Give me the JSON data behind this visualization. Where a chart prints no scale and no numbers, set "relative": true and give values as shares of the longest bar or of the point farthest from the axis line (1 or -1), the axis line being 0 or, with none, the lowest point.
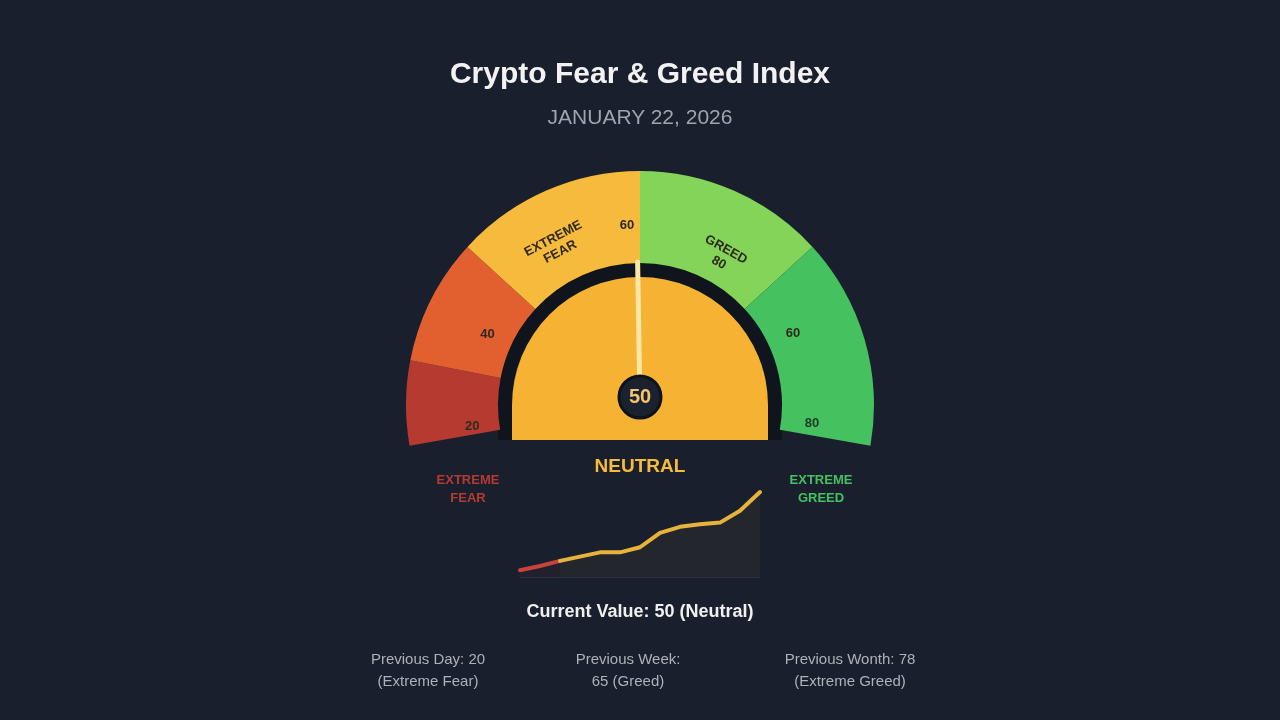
{
  "chart_data": [
    {
      "type": "donut",
      "title": "Crypto Fear & Greed Index",
      "subtitle": "JANUARY 22, 2026",
      "categories": [
        "20",
        "40",
        "EXTREME FEAR",
        "GREED 80",
        "60"
      ],
      "values": [
        10.5,
        15.75,
        23.75,
        23.75,
        26.25
      ],
      "colors": [
        "#b63a30",
        "#e2602f",
        "#f6bb3c",
        "#84d45a",
        "#45c160"
      ],
      "needle": "EXTREME FEAR",
      "annotations": [
        "60",
        "80",
        "EXTREME FEAR",
        "NEUTRAL",
        "EXTREME GREED",
        "50"
      ]
    },
    {
      "type": "area",
      "relative": true,
      "categories": [
        null,
        null,
        null,
        null,
        null,
        null,
        null,
        null,
        null,
        null,
        null,
        null,
        null
      ],
      "series": [
        {
          "color": "#c9433a",
          "values": [
            0.08,
            0.13,
            0.19,
            null,
            null,
            null,
            null,
            null,
            null,
            null,
            null,
            null,
            null
          ]
        },
        {
          "color": "#e8b33c",
          "values": [
            null,
            null,
            0.19,
            0.24,
            0.29,
            0.29,
            0.35,
            0.52,
            0.59,
            0.62,
            0.64,
            0.78,
            1
          ]
        }
      ]
    },
    {
      "type": "other",
      "annotations": [
        "Current Value: 50 (Neutral)",
        "Previous Day: 20 (Extreme Fear)",
        "Previous Week: 65 (Greed)",
        "Previous Wonth: 78 (Extreme Greed)"
      ]
    }
  ]
}
